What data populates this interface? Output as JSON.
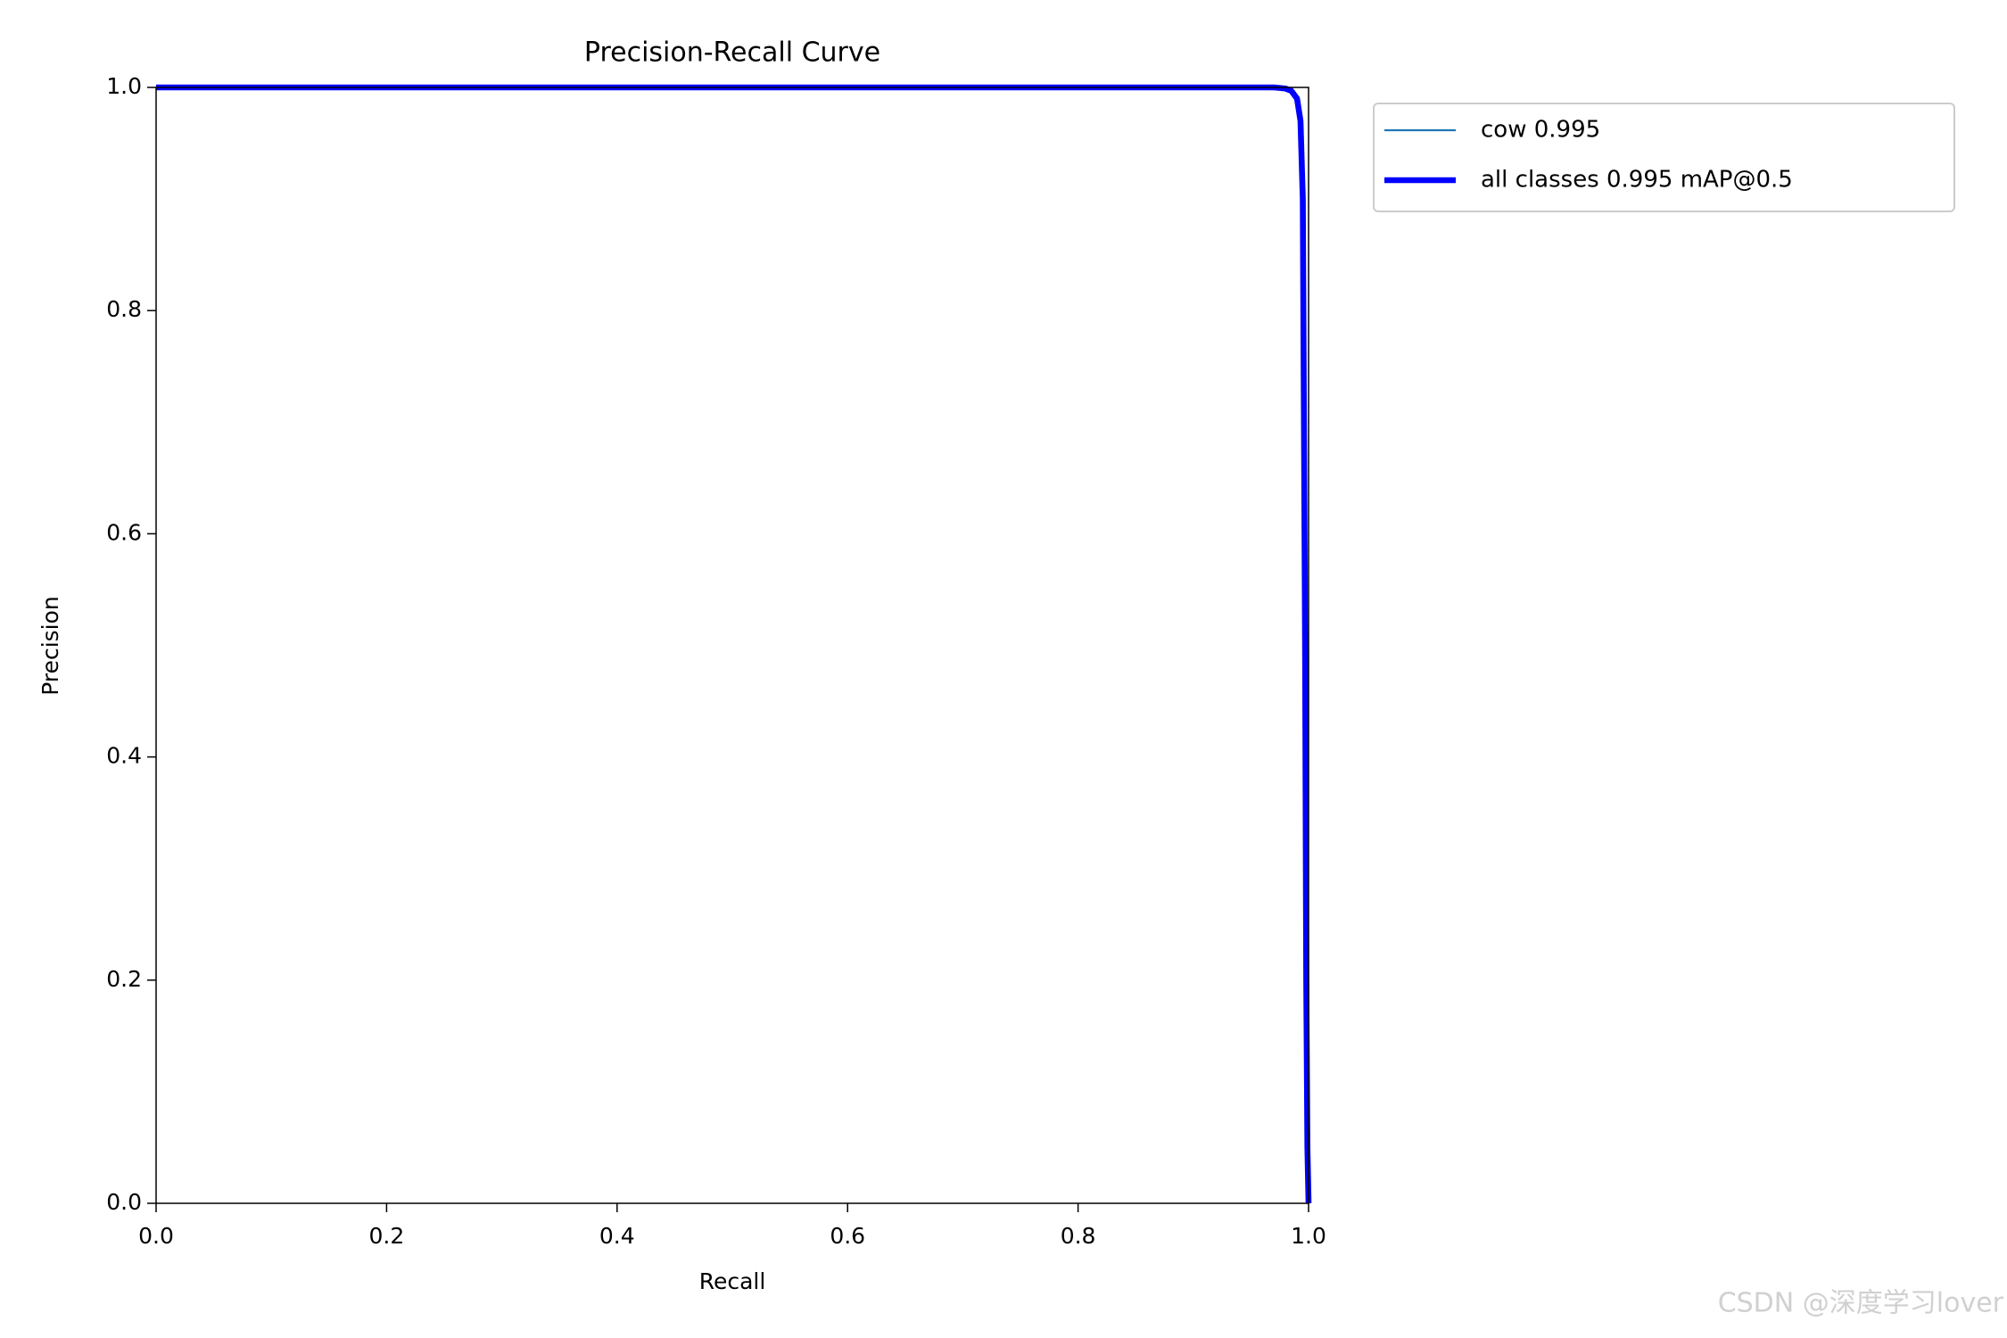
{
  "chart_data": {
    "type": "line",
    "title": "Precision-Recall Curve",
    "x_label": "Recall",
    "y_label": "Precision",
    "x": [
      0,
      0.2,
      0.4,
      0.6,
      0.8,
      0.97,
      0.98,
      0.985,
      0.99,
      0.993,
      0.995,
      0.997,
      0.998,
      0.999,
      1.0
    ],
    "series": [
      {
        "name": "cow 0.995",
        "color": "#1f77b4",
        "width": 1,
        "values": [
          1,
          1,
          1,
          1,
          1,
          1,
          0.999,
          0.997,
          0.99,
          0.97,
          0.9,
          0.5,
          0.2,
          0.05,
          0
        ]
      },
      {
        "name": "all classes 0.995 mAP@0.5",
        "color": "#0000ff",
        "width": 3,
        "values": [
          1,
          1,
          1,
          1,
          1,
          1,
          0.999,
          0.997,
          0.99,
          0.97,
          0.9,
          0.5,
          0.2,
          0.05,
          0
        ]
      }
    ],
    "xlim": [
      0,
      1
    ],
    "ylim": [
      0,
      1
    ],
    "xticks": [
      {
        "value": 0,
        "label": "0.0"
      },
      0.2,
      0.4,
      0.6,
      0.8,
      {
        "value": 1,
        "label": "1.0"
      }
    ],
    "yticks": [
      {
        "value": 0,
        "label": "0.0"
      },
      0.2,
      0.4,
      0.6,
      0.8,
      {
        "value": 1,
        "label": "1.0"
      }
    ],
    "grid": false,
    "legend": "outside-upper-right"
  },
  "watermark": "CSDN @深度学习lover"
}
